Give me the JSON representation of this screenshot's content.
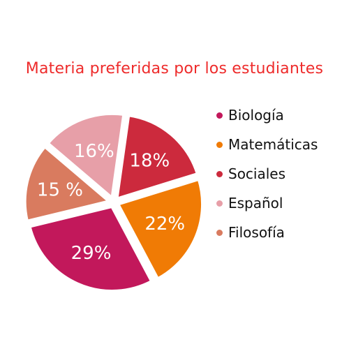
{
  "chart_data": {
    "type": "pie",
    "title": "Materia preferidas por los estudiantes",
    "slices": [
      {
        "name": "Biología",
        "value": 29,
        "label": "29%",
        "color": "#c2185b"
      },
      {
        "name": "Matemáticas",
        "value": 22,
        "label": "22%",
        "color": "#f07b05"
      },
      {
        "name": "Sociales",
        "value": 18,
        "label": "18%",
        "color": "#cc2a3d"
      },
      {
        "name": "Español",
        "value": 16,
        "label": "16%",
        "color": "#e79fa8"
      },
      {
        "name": "Filosofía",
        "value": 15,
        "label": "15 %",
        "color": "#d97b5f"
      }
    ],
    "legend_position": "right",
    "exploded": true
  }
}
